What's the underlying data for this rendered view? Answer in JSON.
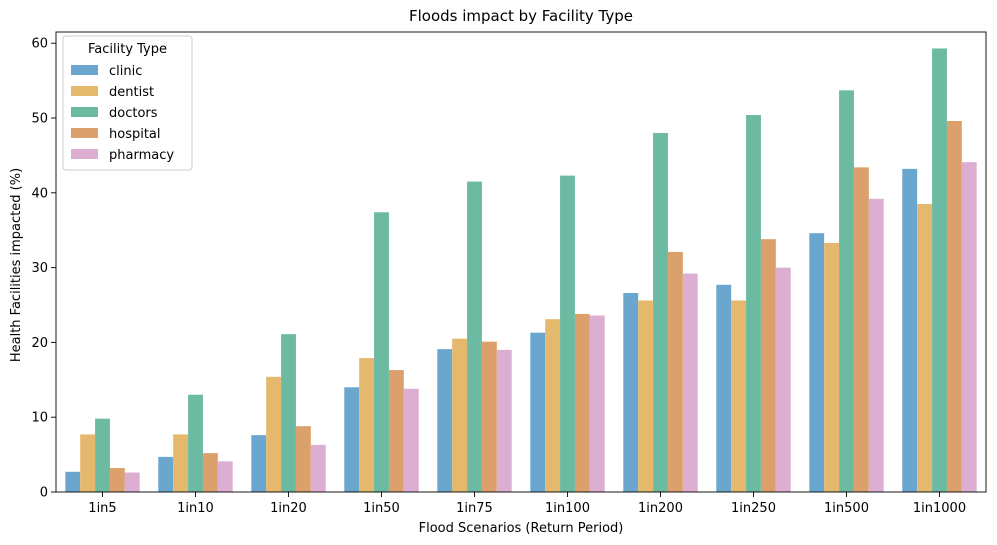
{
  "chart_data": {
    "type": "bar",
    "title": "Floods impact by Facility Type",
    "xlabel": "Flood Scenarios (Return Period)",
    "ylabel": "Health Facilities impacted (%)",
    "ylim": [
      0,
      61.5
    ],
    "yticks": [
      0,
      10,
      20,
      30,
      40,
      50,
      60
    ],
    "grid": false,
    "legend_title": "Facility Type",
    "legend_position": "top-left",
    "categories": [
      "1in5",
      "1in10",
      "1in20",
      "1in50",
      "1in75",
      "1in100",
      "1in200",
      "1in250",
      "1in500",
      "1in1000"
    ],
    "series": [
      {
        "name": "clinic",
        "color": "#6aa6cd",
        "values": [
          2.7,
          4.7,
          7.6,
          14.0,
          19.1,
          21.3,
          26.6,
          27.7,
          34.6,
          43.2
        ]
      },
      {
        "name": "dentist",
        "color": "#e4b96d",
        "values": [
          7.7,
          7.7,
          15.4,
          17.9,
          20.5,
          23.1,
          25.6,
          25.6,
          33.3,
          38.5
        ]
      },
      {
        "name": "doctors",
        "color": "#6dbaa2",
        "values": [
          9.8,
          13.0,
          21.1,
          37.4,
          41.5,
          42.3,
          48.0,
          50.4,
          53.7,
          59.3
        ]
      },
      {
        "name": "hospital",
        "color": "#dba06b",
        "values": [
          3.2,
          5.2,
          8.8,
          16.3,
          20.1,
          23.8,
          32.1,
          33.8,
          43.4,
          49.6
        ]
      },
      {
        "name": "pharmacy",
        "color": "#dcafd2",
        "values": [
          2.6,
          4.1,
          6.3,
          13.8,
          19.0,
          23.6,
          29.2,
          30.0,
          39.2,
          44.1
        ]
      }
    ]
  }
}
